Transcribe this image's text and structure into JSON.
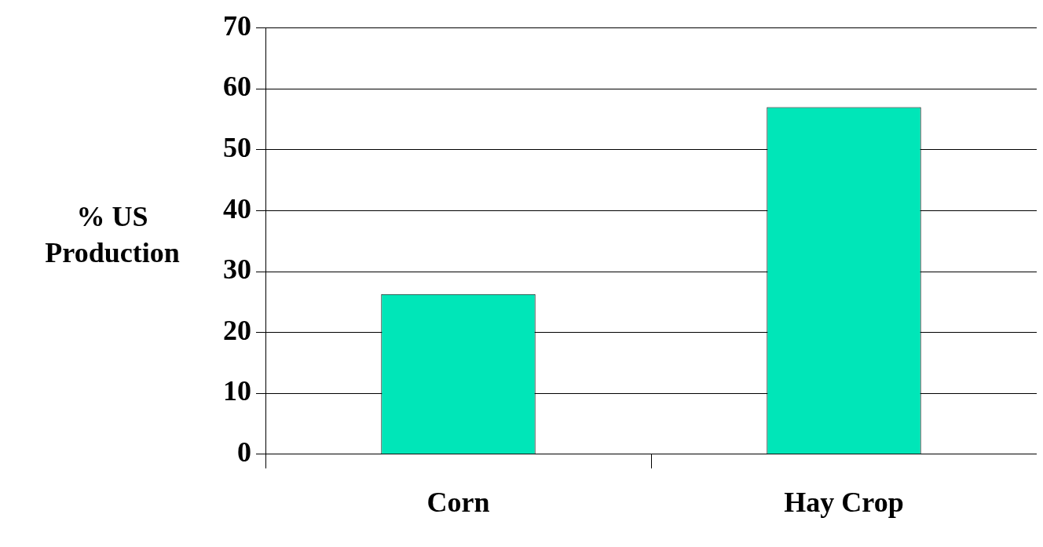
{
  "chart_data": {
    "type": "bar",
    "ylabel": "% US Production",
    "categories": [
      "Corn",
      "Hay Crop"
    ],
    "values": [
      26.3,
      57
    ],
    "color": "#00e6b8",
    "ylim": [
      0,
      70
    ],
    "yticks": [
      0,
      10,
      20,
      30,
      40,
      50,
      60,
      70
    ],
    "grid": "y",
    "legend": false
  }
}
